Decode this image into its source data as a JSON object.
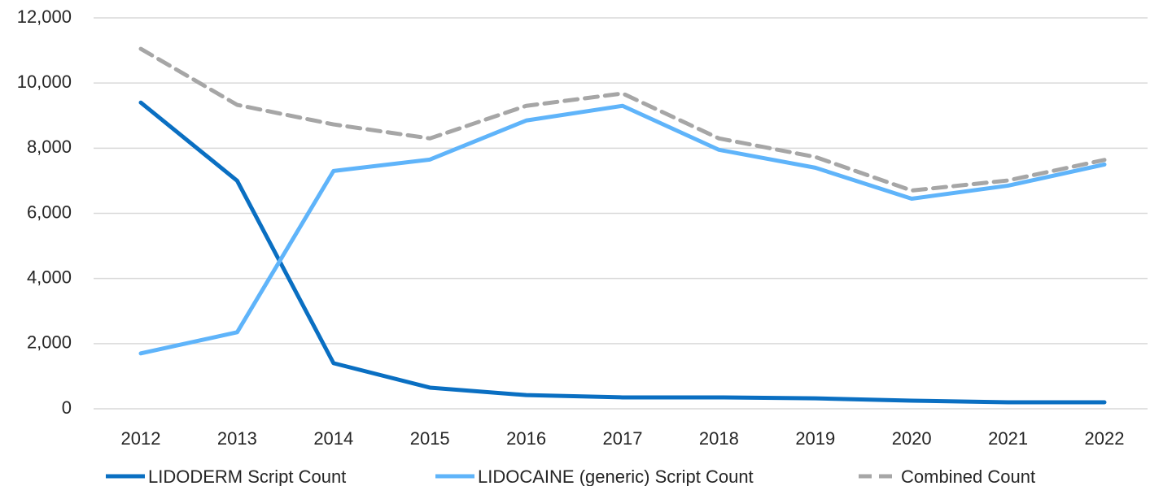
{
  "chart_data": {
    "type": "line",
    "categories": [
      "2012",
      "2013",
      "2014",
      "2015",
      "2016",
      "2017",
      "2018",
      "2019",
      "2020",
      "2021",
      "2022"
    ],
    "series": [
      {
        "name": "LIDODERM Script Count",
        "color": "#0a6fc2",
        "dash": false,
        "values": [
          9400,
          7000,
          1400,
          650,
          420,
          350,
          350,
          320,
          250,
          200,
          200
        ]
      },
      {
        "name": "LIDOCAINE (generic) Script Count",
        "color": "#5fb4fa",
        "dash": false,
        "values": [
          1700,
          2350,
          7300,
          7650,
          8850,
          9300,
          7950,
          7400,
          6450,
          6850,
          7500
        ]
      },
      {
        "name": "Combined Count",
        "color": "#a6a6a6",
        "dash": true,
        "values": [
          11050,
          9330,
          8730,
          8300,
          9300,
          9680,
          8300,
          7730,
          6700,
          7010,
          7640
        ]
      }
    ],
    "ylim": [
      0,
      12000
    ],
    "yticks": [
      0,
      {
        "value": 2000,
        "label": "2,000"
      },
      {
        "value": 4000,
        "label": "4,000"
      },
      {
        "value": 6000,
        "label": "6,000"
      },
      {
        "value": 8000,
        "label": "8,000"
      },
      {
        "value": 10000,
        "label": "10,000"
      },
      {
        "value": 12000,
        "label": "12,000"
      }
    ],
    "grid": true,
    "legend": "bottom"
  }
}
